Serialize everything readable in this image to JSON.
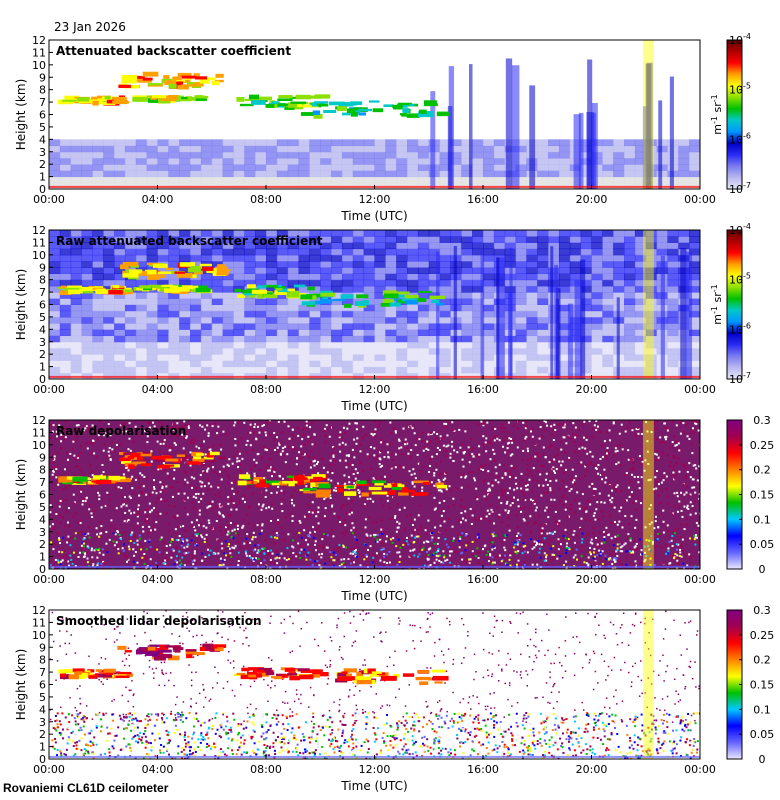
{
  "date": "23 Jan 2026",
  "footer": "Rovaniemi CL61D ceilometer",
  "colors": {
    "background": "#ffffff",
    "clear_sky": "#dedede",
    "jet": [
      "#e6e6f8",
      "#b8b8f0",
      "#7a7af0",
      "#2a2af5",
      "#0000c8",
      "#0096ff",
      "#00c8c8",
      "#00c000",
      "#8ce000",
      "#ffff00",
      "#ffa000",
      "#ff0000",
      "#b00000",
      "#600000"
    ],
    "depol": [
      "#e8e8ff",
      "#6464ff",
      "#0000ff",
      "#00c8ff",
      "#00c000",
      "#ffff00",
      "#ff8000",
      "#ff0000",
      "#a00050",
      "#800080"
    ]
  },
  "chart_data": [
    {
      "type": "heatmap",
      "title": "Attenuated backscatter coefficient",
      "xlabel": "Time (UTC)",
      "ylabel": "Height (km)",
      "x_ticks": [
        "00:00",
        "04:00",
        "08:00",
        "12:00",
        "16:00",
        "20:00",
        "00:00"
      ],
      "xlim_hours": [
        0,
        24
      ],
      "ylim": [
        0,
        12
      ],
      "y_ticks": [
        0,
        1,
        2,
        3,
        4,
        5,
        6,
        7,
        8,
        9,
        10,
        11,
        12
      ],
      "colorbar": {
        "scale": "log",
        "range": [
          1e-07,
          0.0001
        ],
        "ticks": [
          "10-7",
          "10-6",
          "10-5",
          "10-4"
        ],
        "label": "m-1 sr-1"
      },
      "style": "filtered",
      "cloud_layers": [
        {
          "t0": 0.3,
          "t1": 2.6,
          "h": 7.3,
          "thick": 0.5,
          "level": 10
        },
        {
          "t0": 2.5,
          "t1": 6.3,
          "h": 8.9,
          "thick": 1.1,
          "level": 10
        },
        {
          "t0": 3.0,
          "t1": 5.5,
          "h": 7.4,
          "thick": 0.4,
          "level": 9
        },
        {
          "t0": 6.8,
          "t1": 9.8,
          "h": 7.2,
          "thick": 0.9,
          "level": 8
        },
        {
          "t0": 9.2,
          "t1": 14.3,
          "h": 6.6,
          "thick": 1.1,
          "level": 7
        }
      ],
      "precip_column_hours": [
        21.9,
        22.3
      ]
    },
    {
      "type": "heatmap",
      "title": "Raw attenuated backscatter coefficient",
      "xlabel": "Time (UTC)",
      "ylabel": "Height (km)",
      "x_ticks": [
        "00:00",
        "04:00",
        "08:00",
        "12:00",
        "16:00",
        "20:00",
        "00:00"
      ],
      "xlim_hours": [
        0,
        24
      ],
      "ylim": [
        0,
        12
      ],
      "y_ticks": [
        0,
        1,
        2,
        3,
        4,
        5,
        6,
        7,
        8,
        9,
        10,
        11,
        12
      ],
      "colorbar": {
        "scale": "log",
        "range": [
          1e-07,
          0.0001
        ],
        "ticks": [
          "10-7",
          "10-6",
          "10-5",
          "10-4"
        ],
        "label": "m-1 sr-1"
      },
      "style": "raw",
      "cloud_layers": [
        {
          "t0": 0.3,
          "t1": 2.6,
          "h": 7.3,
          "thick": 0.5,
          "level": 10
        },
        {
          "t0": 2.5,
          "t1": 6.3,
          "h": 8.9,
          "thick": 1.1,
          "level": 10
        },
        {
          "t0": 3.0,
          "t1": 5.5,
          "h": 7.4,
          "thick": 0.4,
          "level": 9
        },
        {
          "t0": 6.8,
          "t1": 9.8,
          "h": 7.2,
          "thick": 0.9,
          "level": 8
        },
        {
          "t0": 9.2,
          "t1": 14.3,
          "h": 6.6,
          "thick": 1.1,
          "level": 7
        }
      ],
      "precip_column_hours": [
        21.9,
        22.3
      ]
    },
    {
      "type": "heatmap",
      "title": "Raw depolarisation",
      "xlabel": "Time (UTC)",
      "ylabel": "Height (km)",
      "x_ticks": [
        "00:00",
        "04:00",
        "08:00",
        "12:00",
        "16:00",
        "20:00",
        "00:00"
      ],
      "xlim_hours": [
        0,
        24
      ],
      "ylim": [
        0,
        12
      ],
      "y_ticks": [
        0,
        1,
        2,
        3,
        4,
        5,
        6,
        7,
        8,
        9,
        10,
        11,
        12
      ],
      "colorbar": {
        "scale": "linear",
        "range": [
          0,
          0.3
        ],
        "ticks": [
          "0",
          "0.05",
          "0.1",
          "0.15",
          "0.2",
          "0.25",
          "0.3"
        ],
        "label": ""
      },
      "style": "depol_raw",
      "cloud_layers": [
        {
          "t0": 0.3,
          "t1": 2.6,
          "h": 7.3,
          "thick": 0.5,
          "level": 6
        },
        {
          "t0": 2.5,
          "t1": 6.3,
          "h": 8.9,
          "thick": 1.1,
          "level": 7
        },
        {
          "t0": 6.8,
          "t1": 9.8,
          "h": 7.2,
          "thick": 0.9,
          "level": 6
        },
        {
          "t0": 9.2,
          "t1": 14.3,
          "h": 6.6,
          "thick": 1.1,
          "level": 6
        }
      ],
      "precip_column_hours": [
        21.9,
        22.3
      ]
    },
    {
      "type": "heatmap",
      "title": "Smoothed lidar depolarisation",
      "xlabel": "Time (UTC)",
      "ylabel": "Height (km)",
      "x_ticks": [
        "00:00",
        "04:00",
        "08:00",
        "12:00",
        "16:00",
        "20:00",
        "00:00"
      ],
      "xlim_hours": [
        0,
        24
      ],
      "ylim": [
        0,
        12
      ],
      "y_ticks": [
        0,
        1,
        2,
        3,
        4,
        5,
        6,
        7,
        8,
        9,
        10,
        11,
        12
      ],
      "colorbar": {
        "scale": "linear",
        "range": [
          0,
          0.3
        ],
        "ticks": [
          "0",
          "0.05",
          "0.1",
          "0.15",
          "0.2",
          "0.25",
          "0.3"
        ],
        "label": ""
      },
      "style": "depol_smooth",
      "cloud_layers": [
        {
          "t0": 0.3,
          "t1": 2.6,
          "h": 7.0,
          "thick": 0.6,
          "level": 7
        },
        {
          "t0": 2.5,
          "t1": 6.3,
          "h": 8.8,
          "thick": 1.0,
          "level": 8
        },
        {
          "t0": 6.8,
          "t1": 9.8,
          "h": 7.0,
          "thick": 0.8,
          "level": 7
        },
        {
          "t0": 10.5,
          "t1": 14.3,
          "h": 6.8,
          "thick": 1.1,
          "level": 7
        }
      ],
      "precip_column_hours": [
        21.9,
        22.3
      ]
    }
  ]
}
